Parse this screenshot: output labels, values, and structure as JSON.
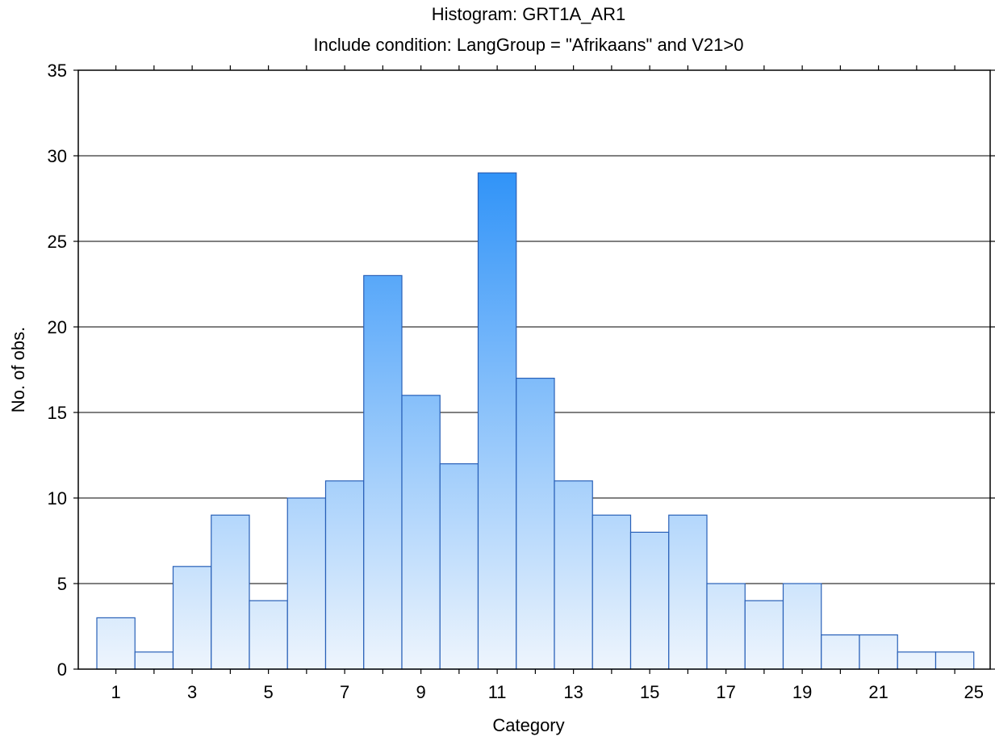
{
  "chart_data": {
    "type": "bar",
    "title": "Histogram: GRT1A_AR1",
    "subtitle": "Include condition: LangGroup = \"Afrikaans\" and V21>0",
    "xlabel": "Category",
    "ylabel": "No. of obs.",
    "ylim": [
      0,
      35
    ],
    "yticks": [
      0,
      5,
      10,
      15,
      20,
      25,
      30,
      35
    ],
    "grid": "horizontal",
    "bar_count": 23,
    "values": [
      3,
      1,
      6,
      9,
      4,
      10,
      11,
      23,
      16,
      12,
      29,
      17,
      11,
      9,
      8,
      9,
      5,
      4,
      5,
      2,
      2,
      1,
      1
    ],
    "xtick_labels": [
      {
        "bar": 1,
        "label": "1"
      },
      {
        "bar": 3,
        "label": "3"
      },
      {
        "bar": 5,
        "label": "5"
      },
      {
        "bar": 7,
        "label": "7"
      },
      {
        "bar": 9,
        "label": "9"
      },
      {
        "bar": 11,
        "label": "11"
      },
      {
        "bar": 13,
        "label": "13"
      },
      {
        "bar": 15,
        "label": "15"
      },
      {
        "bar": 17,
        "label": "17"
      },
      {
        "bar": 19,
        "label": "19"
      },
      {
        "bar": 21,
        "label": "21"
      },
      {
        "bar": 23.5,
        "label": "25"
      }
    ],
    "colors": {
      "bar_top": "#2a90f8",
      "bar_bottom": "#eef5fd",
      "bar_edge": "#2860b8",
      "grid": "#000000",
      "axis": "#000000"
    }
  }
}
